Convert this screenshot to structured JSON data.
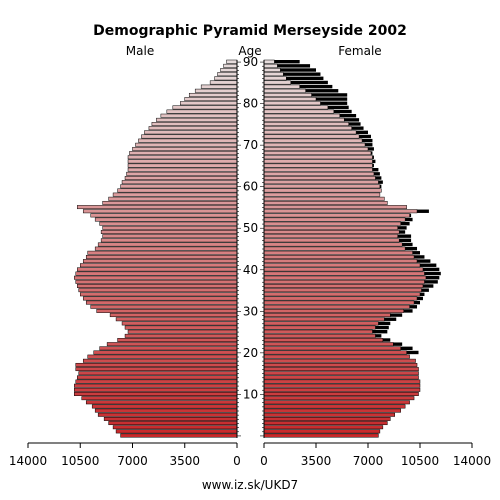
{
  "chart_data": {
    "type": "bar",
    "title": "Demographic Pyramid Merseyside 2002",
    "left_label": "Male",
    "center_label": "Age",
    "right_label": "Female",
    "footer": "www.iz.sk/UKD7",
    "x_ticks_left": [
      "14000",
      "10500",
      "7000",
      "3500",
      "0"
    ],
    "x_ticks_right": [
      "0",
      "3500",
      "7000",
      "10500",
      "14000"
    ],
    "xlim": [
      0,
      14000
    ],
    "age_ticks": [
      "10",
      "20",
      "30",
      "40",
      "50",
      "60",
      "70",
      "80",
      "90"
    ],
    "ages": [
      0,
      1,
      2,
      3,
      4,
      5,
      6,
      7,
      8,
      9,
      10,
      11,
      12,
      13,
      14,
      15,
      16,
      17,
      18,
      19,
      20,
      21,
      22,
      23,
      24,
      25,
      26,
      27,
      28,
      29,
      30,
      31,
      32,
      33,
      34,
      35,
      36,
      37,
      38,
      39,
      40,
      41,
      42,
      43,
      44,
      45,
      46,
      47,
      48,
      49,
      50,
      51,
      52,
      53,
      54,
      55,
      56,
      57,
      58,
      59,
      60,
      61,
      62,
      63,
      64,
      65,
      66,
      67,
      68,
      69,
      70,
      71,
      72,
      73,
      74,
      75,
      76,
      77,
      78,
      79,
      80,
      81,
      82,
      83,
      84,
      85,
      86,
      87,
      88,
      89,
      90
    ],
    "series": [
      {
        "name": "Male",
        "values": [
          7800,
          8100,
          8300,
          8600,
          8900,
          9300,
          9500,
          9700,
          10100,
          10400,
          10900,
          10900,
          10900,
          10800,
          10700,
          10600,
          10800,
          10800,
          10300,
          10000,
          9600,
          9200,
          8700,
          8000,
          7500,
          7300,
          7500,
          7700,
          8100,
          8500,
          9400,
          9800,
          10100,
          10300,
          10500,
          10600,
          10700,
          10800,
          10900,
          10800,
          10700,
          10500,
          10300,
          10100,
          10000,
          9500,
          9300,
          9100,
          9000,
          9100,
          9000,
          9200,
          9500,
          9800,
          10300,
          10700,
          9000,
          8600,
          8300,
          8000,
          7800,
          7700,
          7500,
          7400,
          7300,
          7300,
          7300,
          7300,
          7200,
          7000,
          6800,
          6600,
          6400,
          6200,
          5900,
          5700,
          5400,
          5100,
          4700,
          4300,
          3800,
          3500,
          3200,
          2800,
          2400,
          1800,
          1500,
          1300,
          1100,
          900,
          700
        ]
      },
      {
        "name": "Female",
        "values": [
          7700,
          7800,
          8000,
          8300,
          8500,
          8800,
          9200,
          9500,
          9800,
          10100,
          10400,
          10500,
          10500,
          10500,
          10400,
          10400,
          10400,
          10300,
          10200,
          9800,
          10400,
          10000,
          9300,
          8500,
          7900,
          8300,
          8400,
          8500,
          8900,
          9300,
          10000,
          10300,
          10500,
          10700,
          10800,
          11100,
          11400,
          11700,
          11800,
          11900,
          11800,
          11600,
          11200,
          10800,
          10500,
          10300,
          10000,
          9900,
          9900,
          9500,
          9600,
          9800,
          10000,
          9900,
          11100,
          9600,
          8300,
          8100,
          7800,
          7900,
          7900,
          8000,
          7900,
          7800,
          7700,
          7400,
          7500,
          7400,
          7300,
          7400,
          7300,
          7300,
          7200,
          7000,
          6700,
          6500,
          6400,
          6200,
          5900,
          5700,
          5600,
          5600,
          5600,
          5000,
          4600,
          4300,
          4000,
          3800,
          3500,
          3100,
          2400
        ]
      },
      {
        "name": "Male excess",
        "values": [
          0,
          0,
          0,
          0,
          0,
          0,
          0,
          0,
          0,
          0,
          0,
          0,
          0,
          0,
          0,
          0,
          0,
          0,
          0,
          0,
          0,
          0,
          0,
          0,
          0,
          0,
          0,
          0,
          0,
          0,
          0,
          0,
          0,
          0,
          0,
          0,
          0,
          0,
          0,
          0,
          0,
          0,
          0,
          0,
          0,
          0,
          0,
          0,
          0,
          0,
          0,
          0,
          0,
          0,
          0,
          0,
          0,
          0,
          0,
          0,
          0,
          0,
          0,
          0,
          0,
          0,
          0,
          0,
          0,
          0,
          0,
          0,
          0,
          0,
          0,
          0,
          0,
          0,
          0,
          0,
          0,
          0,
          0,
          0,
          0,
          0,
          0,
          0,
          0,
          0,
          0
        ]
      }
    ],
    "colors": {
      "bar_low_age": "#c8282a",
      "bar_high_age": "#e6dcdc",
      "excess": "#000000",
      "outline": "#000000"
    }
  }
}
